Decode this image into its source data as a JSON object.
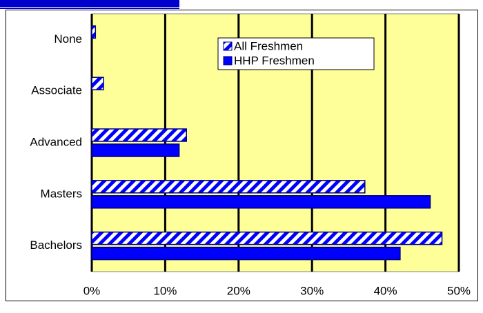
{
  "chart_data": {
    "type": "hbar",
    "categories": [
      "None",
      "Associate",
      "Advanced",
      "Masters",
      "Bachelors"
    ],
    "series": [
      {
        "name": "All Freshmen",
        "color": "#0000ff",
        "pattern": "hatch",
        "values": [
          0.5,
          1.6,
          12.9,
          37.2,
          47.7
        ]
      },
      {
        "name": "HHP Freshmen",
        "color": "#0000ff",
        "pattern": "solid",
        "values": [
          0,
          0,
          11.9,
          46.1,
          42.0
        ]
      }
    ],
    "xlim": [
      0,
      50
    ],
    "xticks": [
      {
        "value": 0,
        "label": "0%"
      },
      {
        "value": 10,
        "label": "10%"
      },
      {
        "value": 20,
        "label": "20%"
      },
      {
        "value": 30,
        "label": "30%"
      },
      {
        "value": 40,
        "label": "40%"
      },
      {
        "value": 50,
        "label": "50%"
      }
    ],
    "grid": true,
    "legend": "top-right"
  }
}
